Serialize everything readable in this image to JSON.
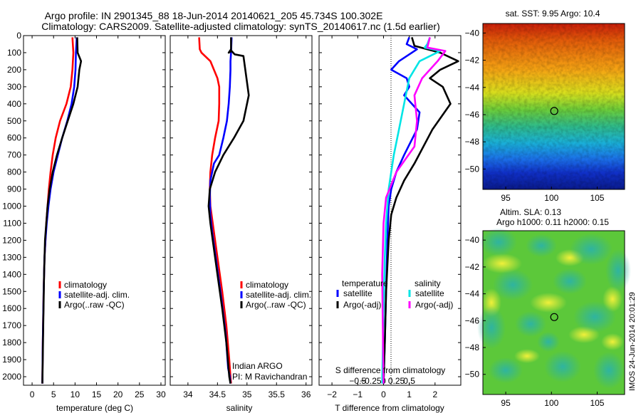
{
  "header": {
    "line1": "Argo profile: IN 2901345_88 18-Jun-2014 20140621_205 45.734S 100.302E",
    "line2": "Climatology: CARS2009. Satellite-adjusted climatology: synTS_20140617.nc (1.5d earlier)"
  },
  "credit": "Indian ARGO",
  "pi": "PI: M Ravichandran",
  "stamp": "IMOS 24-Jun-2014 20:01:29",
  "colors": {
    "climatology": "#ff0000",
    "satellite": "#0000ff",
    "argo": "#000000",
    "sat_salinity": "#00e5e5",
    "argo_salinity": "#ff00ff"
  },
  "chart_data": [
    {
      "type": "line",
      "xlabel": "temperature (deg C)",
      "xlim": [
        -2,
        31
      ],
      "xticks": [
        0,
        5,
        10,
        15,
        20,
        25,
        30
      ],
      "ylim": [
        0,
        2050
      ],
      "yticks": [
        0,
        100,
        200,
        300,
        400,
        500,
        600,
        700,
        800,
        900,
        1000,
        1100,
        1200,
        1300,
        1400,
        1500,
        1600,
        1700,
        1800,
        1900,
        2000
      ],
      "yreversed": true,
      "legend": "bottom-center",
      "series": [
        {
          "name": "climatology",
          "color": "#ff0000",
          "x": [
            9.4,
            9.6,
            9.4,
            9.0,
            8.0,
            6.5,
            5.5,
            4.8,
            4.3,
            3.9,
            3.6,
            3.3,
            3.1,
            2.9,
            2.7,
            2.5,
            2.4
          ],
          "y": [
            10,
            100,
            200,
            300,
            400,
            500,
            600,
            700,
            800,
            900,
            1000,
            1100,
            1200,
            1300,
            1500,
            1800,
            2040
          ]
        },
        {
          "name": "satellite-adj. clim.",
          "color": "#0000ff",
          "x": [
            10.4,
            10.2,
            10.1,
            9.8,
            9.2,
            8.2,
            7.0,
            6.0,
            5.0,
            4.3,
            3.8,
            3.4,
            3.1,
            2.9,
            2.7,
            2.5,
            2.4
          ],
          "y": [
            10,
            100,
            200,
            300,
            400,
            500,
            600,
            700,
            800,
            900,
            1000,
            1100,
            1200,
            1300,
            1500,
            1800,
            2040
          ]
        },
        {
          "name": "Argo(..raw -QC)",
          "color": "#000000",
          "x": [
            10.5,
            10.6,
            11.4,
            11.0,
            10.6,
            9.6,
            8.3,
            7.0,
            5.8,
            4.8,
            4.1,
            3.6,
            3.3,
            3.0,
            2.8,
            2.6,
            2.4
          ],
          "y": [
            10,
            100,
            150,
            200,
            300,
            400,
            500,
            600,
            700,
            800,
            900,
            1000,
            1100,
            1200,
            1400,
            1700,
            2040
          ]
        }
      ]
    },
    {
      "type": "line",
      "xlabel": "salinity",
      "xlim": [
        33.7,
        36.1
      ],
      "xticks": [
        34,
        34.5,
        35,
        35.5,
        36
      ],
      "xticklabels": [
        "34",
        "34.5",
        "35",
        "35.5",
        "36"
      ],
      "ylim": [
        0,
        2050
      ],
      "yreversed": true,
      "legend": "bottom-center",
      "series": [
        {
          "name": "climatology",
          "color": "#ff0000",
          "x": [
            34.19,
            34.2,
            34.23,
            34.38,
            34.5,
            34.53,
            34.53,
            34.52,
            34.46,
            34.41,
            34.38,
            34.37,
            34.38,
            34.42,
            34.5,
            34.58,
            34.65,
            34.7,
            34.72,
            34.73
          ],
          "y": [
            10,
            80,
            100,
            150,
            250,
            300,
            400,
            500,
            600,
            700,
            800,
            900,
            1000,
            1100,
            1300,
            1500,
            1700,
            1900,
            2000,
            2040
          ]
        },
        {
          "name": "satellite-adj. clim.",
          "color": "#0000ff",
          "x": [
            34.74,
            34.73,
            34.72,
            34.72,
            34.71,
            34.69,
            34.66,
            34.6,
            34.53,
            34.44,
            34.38,
            34.37,
            34.38,
            34.41,
            34.49,
            34.57,
            34.64,
            34.68,
            34.71,
            34.72
          ],
          "y": [
            10,
            100,
            150,
            200,
            300,
            400,
            500,
            600,
            700,
            750,
            850,
            950,
            1050,
            1150,
            1350,
            1550,
            1750,
            1950,
            2000,
            2040
          ]
        },
        {
          "name": "Argo(..raw -QC)",
          "color": "#000000",
          "x": [
            34.73,
            34.73,
            34.69,
            34.74,
            34.79,
            34.94,
            35.03,
            34.94,
            34.78,
            34.6,
            34.46,
            34.37,
            34.35,
            34.38,
            34.42,
            34.5,
            34.58,
            34.65,
            34.7,
            34.72
          ],
          "y": [
            10,
            80,
            100,
            90,
            110,
            120,
            350,
            500,
            600,
            700,
            800,
            900,
            1000,
            1100,
            1200,
            1400,
            1600,
            1800,
            2000,
            2040
          ]
        }
      ]
    },
    {
      "type": "line",
      "xlabel": "T difference from climatology",
      "x2label": "S difference from climatology",
      "xlim": [
        -2.5,
        3.0
      ],
      "xticks": [
        -2,
        -1,
        0,
        1,
        2
      ],
      "x2ticks": [
        -0.5,
        -0.25,
        0,
        0.25,
        0.5
      ],
      "x2ticklabels": [
        "−0.5",
        "−0.25",
        "0",
        "0.25",
        "0.5"
      ],
      "xticklabels": [
        "−2",
        "−1",
        "0",
        "1",
        "2"
      ],
      "ylim": [
        0,
        2050
      ],
      "yreversed": true,
      "zero_line": "dotted",
      "legend": "center",
      "legend_groups": [
        "temperature",
        "salinity"
      ],
      "series": [
        {
          "name": "satellite",
          "group": "temperature",
          "color": "#0000ff",
          "x": [
            1.0,
            0.9,
            1.3,
            0.6,
            0.3,
            0.9,
            1.0,
            0.8,
            1.4,
            1.3,
            0.8,
            0.5,
            0.3,
            0.2,
            0.15,
            0.1,
            0.05,
            0.0
          ],
          "y": [
            10,
            50,
            80,
            150,
            200,
            250,
            300,
            350,
            450,
            550,
            700,
            800,
            900,
            1000,
            1200,
            1500,
            1800,
            2040
          ]
        },
        {
          "name": "Argo(-adj)",
          "group": "temperature",
          "color": "#000000",
          "x": [
            1.1,
            1.2,
            2.2,
            2.9,
            2.2,
            1.8,
            2.3,
            2.6,
            1.9,
            1.2,
            0.8,
            0.5,
            0.3,
            0.2,
            0.15,
            0.1,
            0.05,
            0.0
          ],
          "y": [
            10,
            60,
            100,
            150,
            200,
            250,
            300,
            400,
            550,
            750,
            850,
            950,
            1050,
            1200,
            1350,
            1500,
            1800,
            2040
          ]
        },
        {
          "name": "satellite",
          "group": "salinity",
          "color": "#00e5e5",
          "x": [
            1.8,
            1.7,
            1.6,
            2.2,
            1.4,
            1.0,
            0.8,
            0.6,
            0.4,
            0.2,
            0.1,
            0.05,
            0.0,
            -0.05
          ],
          "y": [
            10,
            50,
            70,
            90,
            150,
            250,
            400,
            550,
            700,
            900,
            1100,
            1300,
            1600,
            2040
          ]
        },
        {
          "name": "Argo(-adj)",
          "group": "salinity",
          "color": "#ff00ff",
          "x": [
            1.8,
            1.7,
            2.4,
            2.1,
            1.5,
            1.2,
            1.3,
            1.2,
            0.5,
            0.1,
            0.0,
            -0.05,
            0.0
          ],
          "y": [
            10,
            70,
            90,
            150,
            250,
            350,
            500,
            650,
            800,
            950,
            1100,
            1400,
            2040
          ]
        }
      ]
    },
    {
      "type": "heatmap",
      "title": "sat. SST: 9.95 Argo: 10.4",
      "xlim": [
        92.5,
        108
      ],
      "ylim": [
        -51.5,
        -39.3
      ],
      "xticks": [
        95,
        100,
        105
      ],
      "yticks": [
        -40,
        -42,
        -44,
        -46,
        -48,
        -50
      ],
      "marker": {
        "x": 100.302,
        "y": -45.734
      }
    },
    {
      "type": "heatmap",
      "title": "Altim. SLA: 0.13",
      "subtitle": "Argo h1000: 0.11 h2000: 0.15",
      "xlim": [
        92.5,
        108
      ],
      "ylim": [
        -51.5,
        -39.3
      ],
      "xticks": [
        95,
        100,
        105
      ],
      "yticks": [
        -40,
        -42,
        -44,
        -46,
        -48,
        -50
      ],
      "marker": {
        "x": 100.302,
        "y": -45.734
      }
    }
  ]
}
